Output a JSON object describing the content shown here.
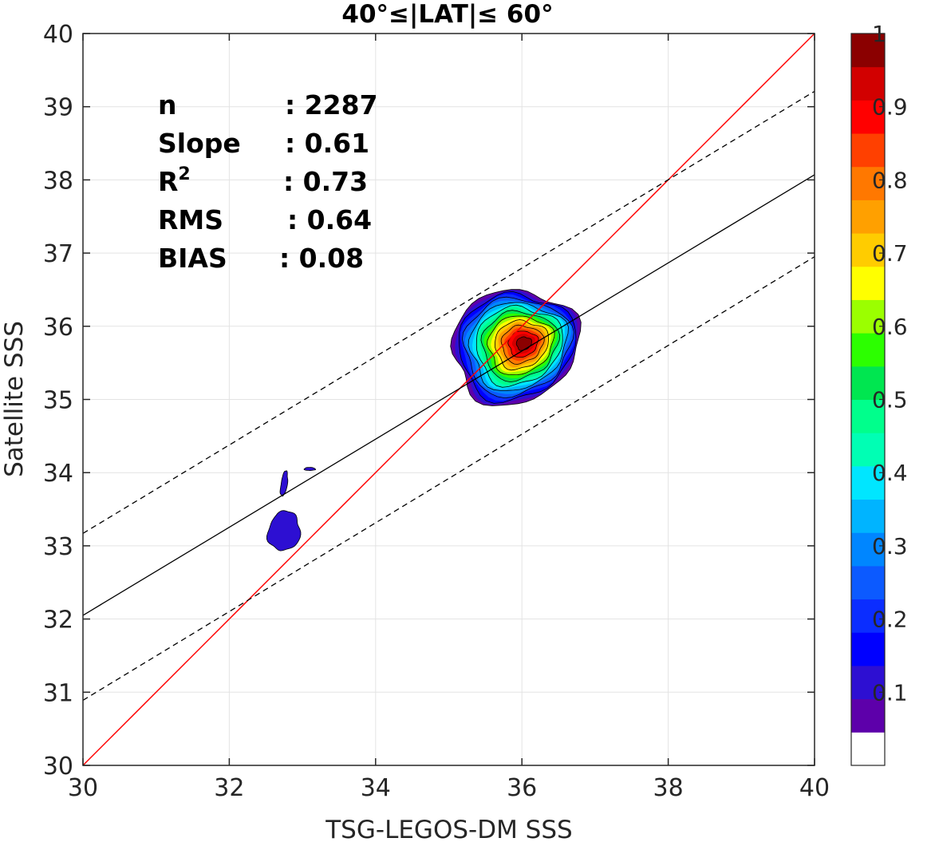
{
  "chart_data": {
    "type": "heatmap",
    "title": "40°≤|LAT|≤ 60°",
    "xlabel": "TSG-LEGOS-DM SSS",
    "ylabel": "Satellite SSS",
    "xlim": [
      30,
      40
    ],
    "ylim": [
      30,
      40
    ],
    "xticks": [
      "30",
      "32",
      "34",
      "36",
      "38",
      "40"
    ],
    "yticks": [
      "30",
      "31",
      "32",
      "33",
      "34",
      "35",
      "36",
      "37",
      "38",
      "39",
      "40"
    ],
    "grid": true,
    "stats": [
      {
        "label": "n",
        "value": ": 2287"
      },
      {
        "label": "Slope",
        "value": ": 0.61"
      },
      {
        "label": "R",
        "sup": "2",
        "value": ": 0.73"
      },
      {
        "label": "RMS",
        "value": ": 0.64"
      },
      {
        "label": "BIAS",
        "value": ": 0.08"
      }
    ],
    "lines": {
      "identity": {
        "slope": 1,
        "intercept": 0,
        "color": "#ff0000"
      },
      "fit": {
        "x": [
          30,
          40
        ],
        "y": [
          32.05,
          38.07
        ],
        "color": "#000000"
      },
      "fit_bounds": [
        {
          "x": [
            30,
            40
          ],
          "y": [
            33.17,
            39.21
          ]
        },
        {
          "x": [
            30,
            40
          ],
          "y": [
            30.89,
            36.95
          ]
        }
      ]
    },
    "density_peak": {
      "x": 36.0,
      "y": 35.8
    },
    "secondary_blobs": [
      {
        "x": 32.75,
        "y": 33.2,
        "level": 0.1
      },
      {
        "x": 32.75,
        "y": 33.85,
        "level": 0.1
      },
      {
        "x": 33.1,
        "y": 34.05,
        "level": 0.1
      }
    ],
    "colorbar": {
      "ticks": [
        "0.1",
        "0.2",
        "0.3",
        "0.4",
        "0.5",
        "0.6",
        "0.7",
        "0.8",
        "0.9",
        "1"
      ],
      "levels": [
        "#ffffff",
        "#5d00aa",
        "#2d0fd2",
        "#0000ff",
        "#0b2dff",
        "#0c5aff",
        "#0086ff",
        "#00b4ff",
        "#00e6ff",
        "#00ffb4",
        "#00ff8c",
        "#00e650",
        "#2cff00",
        "#9bff00",
        "#ffff00",
        "#ffcc00",
        "#ffa000",
        "#ff7800",
        "#ff4000",
        "#ff0000",
        "#d20000",
        "#8b0000"
      ]
    }
  }
}
